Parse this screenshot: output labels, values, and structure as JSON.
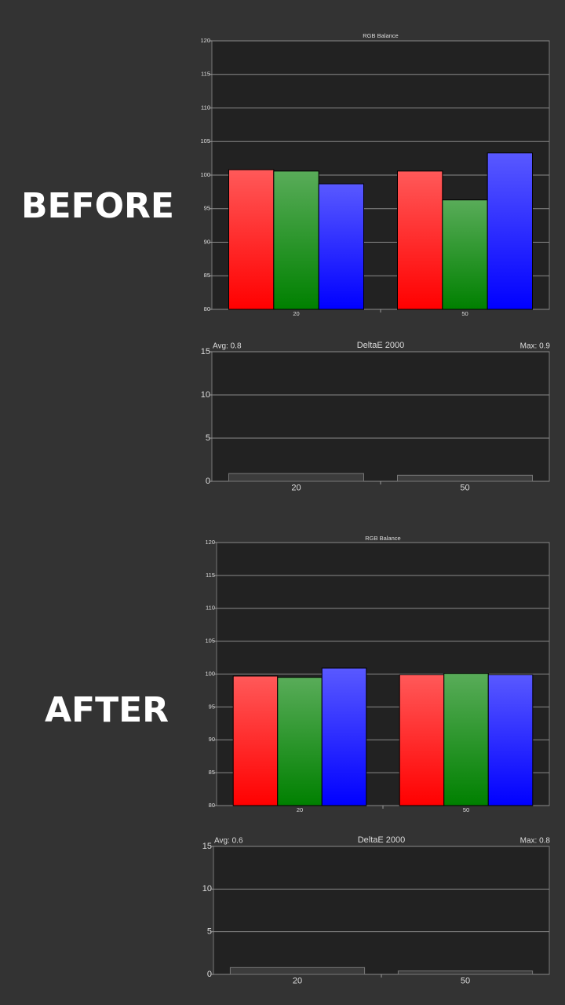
{
  "section_labels": [
    "BEFORE",
    "AFTER"
  ],
  "chart_data": [
    {
      "type": "bar",
      "title": "RGB Balance",
      "categories": [
        "20",
        "50"
      ],
      "series": [
        {
          "color": "#ff0000",
          "values": [
            100.8,
            100.6
          ]
        },
        {
          "color": "#008000",
          "values": [
            100.6,
            96.3
          ]
        },
        {
          "color": "#0000ff",
          "values": [
            98.7,
            103.3
          ]
        }
      ],
      "ylim": [
        80,
        120
      ],
      "yticks": [
        80,
        85,
        90,
        95,
        100,
        105,
        110,
        115,
        120
      ],
      "grid": true
    },
    {
      "type": "bar",
      "title": "DeltaE 2000",
      "avg_label": "Avg: 0.8",
      "max_label": "Max: 0.9",
      "categories": [
        "20",
        "50"
      ],
      "values": [
        0.9,
        0.7
      ],
      "color": "#3c3c3c",
      "ylim": [
        0,
        15
      ],
      "yticks": [
        0,
        5,
        10,
        15
      ],
      "grid": true
    },
    {
      "type": "bar",
      "title": "RGB Balance",
      "categories": [
        "20",
        "50"
      ],
      "series": [
        {
          "color": "#ff0000",
          "values": [
            99.7,
            99.9
          ]
        },
        {
          "color": "#008000",
          "values": [
            99.5,
            100.1
          ]
        },
        {
          "color": "#0000ff",
          "values": [
            100.9,
            99.9
          ]
        }
      ],
      "ylim": [
        80,
        120
      ],
      "yticks": [
        80,
        85,
        90,
        95,
        100,
        105,
        110,
        115,
        120
      ],
      "grid": true
    },
    {
      "type": "bar",
      "title": "DeltaE 2000",
      "avg_label": "Avg: 0.6",
      "max_label": "Max: 0.8",
      "categories": [
        "20",
        "50"
      ],
      "values": [
        0.8,
        0.4
      ],
      "color": "#3c3c3c",
      "ylim": [
        0,
        15
      ],
      "yticks": [
        0,
        5,
        10,
        15
      ],
      "grid": true
    }
  ]
}
